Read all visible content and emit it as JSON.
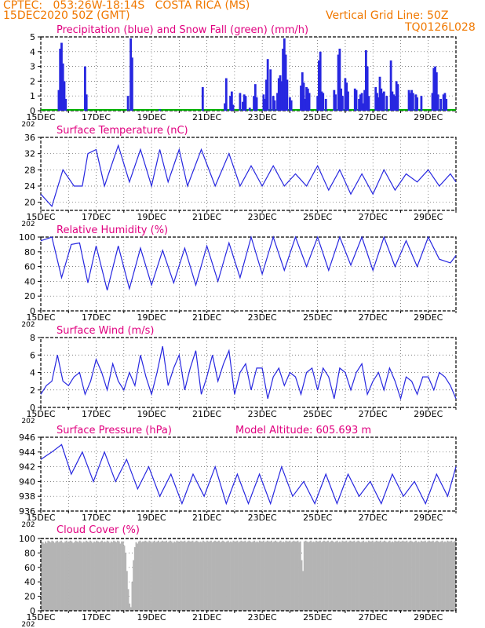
{
  "header": {
    "line1": "CPTEC:   053:26W-18:14S   COSTA RICA (MS)",
    "line2": "15DEC2020 50Z (GMT)",
    "grid_note": "Vertical Grid Line: 50Z",
    "code": "TQ0126L028",
    "header_color": "#f07800",
    "title_color": "#e0007f"
  },
  "x_axis": {
    "tick_labels": [
      "15DEC",
      "17DEC",
      "19DEC",
      "21DEC",
      "23DEC",
      "25DEC",
      "27DEC",
      "29DEC"
    ],
    "year_fragment": "202",
    "xlim": [
      0,
      15
    ]
  },
  "chart_data": [
    {
      "type": "bar",
      "title": "Precipitation (blue) and Snow Fall (green) (mm/h)",
      "ylim": [
        0,
        5
      ],
      "yticks": [
        0,
        1,
        2,
        3,
        4,
        5
      ],
      "grid": true,
      "colors": {
        "precip": "#2727e0",
        "snow": "#00b000"
      },
      "series": [
        {
          "name": "Precipitation",
          "points": [
            [
              0.65,
              1.4
            ],
            [
              0.7,
              4.2
            ],
            [
              0.75,
              4.6
            ],
            [
              0.8,
              3.2
            ],
            [
              0.85,
              2.0
            ],
            [
              0.9,
              0.8
            ],
            [
              1.6,
              3.0
            ],
            [
              1.65,
              1.1
            ],
            [
              3.15,
              1.0
            ],
            [
              3.25,
              4.9
            ],
            [
              3.3,
              3.6
            ],
            [
              4.3,
              0.1
            ],
            [
              5.85,
              1.6
            ],
            [
              6.65,
              0.5
            ],
            [
              6.7,
              2.2
            ],
            [
              6.85,
              1.0
            ],
            [
              6.9,
              1.3
            ],
            [
              6.95,
              0.4
            ],
            [
              7.2,
              1.2
            ],
            [
              7.3,
              0.6
            ],
            [
              7.35,
              1.1
            ],
            [
              7.4,
              1.0
            ],
            [
              7.55,
              0.2
            ],
            [
              7.7,
              1.0
            ],
            [
              7.75,
              1.8
            ],
            [
              7.8,
              0.9
            ],
            [
              8.05,
              1.1
            ],
            [
              8.1,
              0.8
            ],
            [
              8.15,
              2.1
            ],
            [
              8.2,
              3.5
            ],
            [
              8.3,
              2.8
            ],
            [
              8.4,
              1.0
            ],
            [
              8.45,
              0.7
            ],
            [
              8.55,
              1.2
            ],
            [
              8.6,
              2.2
            ],
            [
              8.65,
              2.4
            ],
            [
              8.7,
              2.0
            ],
            [
              8.75,
              4.2
            ],
            [
              8.8,
              4.9
            ],
            [
              8.85,
              3.8
            ],
            [
              8.9,
              2.1
            ],
            [
              9.0,
              0.9
            ],
            [
              9.05,
              0.7
            ],
            [
              9.4,
              1.7
            ],
            [
              9.45,
              2.6
            ],
            [
              9.5,
              1.9
            ],
            [
              9.55,
              0.8
            ],
            [
              9.6,
              1.6
            ],
            [
              9.65,
              1.5
            ],
            [
              9.7,
              1.2
            ],
            [
              10.0,
              1.0
            ],
            [
              10.05,
              3.4
            ],
            [
              10.1,
              4.0
            ],
            [
              10.15,
              1.3
            ],
            [
              10.2,
              1.2
            ],
            [
              10.3,
              0.8
            ],
            [
              10.6,
              1.4
            ],
            [
              10.65,
              1.1
            ],
            [
              10.75,
              3.8
            ],
            [
              10.8,
              4.2
            ],
            [
              10.85,
              1.5
            ],
            [
              10.9,
              1.0
            ],
            [
              11.0,
              2.2
            ],
            [
              11.05,
              1.9
            ],
            [
              11.1,
              1.3
            ],
            [
              11.35,
              1.5
            ],
            [
              11.4,
              1.4
            ],
            [
              11.5,
              0.8
            ],
            [
              11.55,
              1.1
            ],
            [
              11.6,
              1.2
            ],
            [
              11.65,
              0.5
            ],
            [
              11.7,
              1.4
            ],
            [
              11.75,
              4.1
            ],
            [
              11.8,
              3.0
            ],
            [
              11.85,
              1.0
            ],
            [
              12.1,
              1.6
            ],
            [
              12.15,
              1.2
            ],
            [
              12.2,
              0.9
            ],
            [
              12.25,
              2.3
            ],
            [
              12.3,
              1.5
            ],
            [
              12.35,
              1.2
            ],
            [
              12.4,
              1.3
            ],
            [
              12.5,
              1.0
            ],
            [
              12.65,
              3.4
            ],
            [
              12.7,
              1.3
            ],
            [
              12.75,
              1.1
            ],
            [
              12.8,
              1.0
            ],
            [
              12.85,
              2.0
            ],
            [
              12.9,
              1.8
            ],
            [
              13.3,
              1.4
            ],
            [
              13.35,
              1.2
            ],
            [
              13.4,
              1.4
            ],
            [
              13.45,
              1.2
            ],
            [
              13.55,
              1.1
            ],
            [
              13.6,
              0.9
            ],
            [
              13.75,
              1.0
            ],
            [
              14.15,
              1.2
            ],
            [
              14.2,
              2.9
            ],
            [
              14.25,
              3.0
            ],
            [
              14.3,
              2.6
            ],
            [
              14.35,
              1.1
            ],
            [
              14.45,
              0.8
            ],
            [
              14.55,
              1.1
            ],
            [
              14.6,
              1.2
            ],
            [
              14.65,
              0.8
            ]
          ]
        },
        {
          "name": "Snow Fall",
          "values": [
            0
          ]
        }
      ]
    },
    {
      "type": "line",
      "title": "Surface Temperature (nC)",
      "ylim": [
        18,
        36
      ],
      "yticks": [
        20,
        24,
        28,
        32,
        36
      ],
      "grid": true,
      "color": "#2727e0",
      "x": [
        0,
        0.4,
        0.8,
        1.2,
        1.5,
        1.7,
        2.0,
        2.3,
        2.8,
        3.2,
        3.6,
        4.0,
        4.3,
        4.6,
        5.0,
        5.3,
        5.8,
        6.3,
        6.8,
        7.2,
        7.6,
        8.0,
        8.4,
        8.8,
        9.2,
        9.6,
        10.0,
        10.4,
        10.8,
        11.2,
        11.6,
        12.0,
        12.4,
        12.8,
        13.2,
        13.6,
        14.0,
        14.4,
        14.8,
        15.0
      ],
      "y": [
        22,
        19,
        28,
        24,
        24,
        32,
        33,
        24,
        34,
        25,
        33,
        24,
        33,
        25,
        33,
        24,
        33,
        24,
        32,
        24,
        29,
        24,
        29,
        24,
        27,
        24,
        29,
        23,
        28,
        22,
        27,
        22,
        28,
        23,
        27,
        25,
        28,
        24,
        27,
        25
      ]
    },
    {
      "type": "line",
      "title": "Relative Humidity (%)",
      "ylim": [
        0,
        100
      ],
      "yticks": [
        0,
        20,
        40,
        60,
        80,
        100
      ],
      "grid": true,
      "color": "#2727e0",
      "x": [
        0,
        0.4,
        0.75,
        1.1,
        1.4,
        1.7,
        2.0,
        2.4,
        2.8,
        3.2,
        3.6,
        4.0,
        4.4,
        4.8,
        5.2,
        5.6,
        6.0,
        6.4,
        6.8,
        7.2,
        7.6,
        8.0,
        8.4,
        8.8,
        9.2,
        9.6,
        10.0,
        10.4,
        10.8,
        11.2,
        11.6,
        12.0,
        12.4,
        12.8,
        13.2,
        13.6,
        14.0,
        14.4,
        14.8,
        15.0
      ],
      "y": [
        95,
        100,
        45,
        90,
        92,
        38,
        88,
        28,
        88,
        30,
        85,
        35,
        82,
        38,
        85,
        35,
        88,
        40,
        92,
        45,
        100,
        50,
        100,
        55,
        100,
        60,
        100,
        55,
        100,
        62,
        100,
        55,
        100,
        60,
        95,
        60,
        100,
        70,
        65,
        75
      ]
    },
    {
      "type": "line",
      "title": "Surface Wind (m/s)",
      "ylim": [
        0,
        8
      ],
      "yticks": [
        0,
        2,
        4,
        6,
        8
      ],
      "grid": true,
      "color": "#2727e0",
      "x": [
        0,
        0.2,
        0.4,
        0.6,
        0.8,
        1.0,
        1.2,
        1.4,
        1.6,
        1.8,
        2.0,
        2.2,
        2.4,
        2.6,
        2.8,
        3.0,
        3.2,
        3.4,
        3.6,
        3.8,
        4.0,
        4.2,
        4.4,
        4.6,
        4.8,
        5.0,
        5.2,
        5.4,
        5.6,
        5.8,
        6.0,
        6.2,
        6.4,
        6.6,
        6.8,
        7.0,
        7.2,
        7.4,
        7.6,
        7.8,
        8.0,
        8.2,
        8.4,
        8.6,
        8.8,
        9.0,
        9.2,
        9.4,
        9.6,
        9.8,
        10.0,
        10.2,
        10.4,
        10.6,
        10.8,
        11.0,
        11.2,
        11.4,
        11.6,
        11.8,
        12.0,
        12.2,
        12.4,
        12.6,
        12.8,
        13.0,
        13.2,
        13.4,
        13.6,
        13.8,
        14.0,
        14.2,
        14.4,
        14.6,
        14.8,
        15.0
      ],
      "y": [
        1.5,
        2.5,
        3.0,
        6.0,
        3.0,
        2.5,
        3.5,
        4.0,
        1.5,
        3.0,
        5.5,
        4.0,
        2.0,
        5.0,
        3.0,
        2.0,
        4.0,
        2.5,
        6.0,
        3.5,
        1.5,
        4.0,
        7.0,
        2.5,
        4.5,
        6.0,
        2.0,
        4.5,
        6.5,
        1.5,
        3.5,
        6.0,
        3.0,
        5.0,
        6.5,
        1.5,
        4.0,
        5.0,
        2.0,
        4.5,
        4.5,
        1.0,
        3.5,
        4.5,
        2.5,
        4.0,
        3.5,
        1.5,
        4.0,
        4.5,
        2.0,
        4.5,
        3.5,
        1.0,
        4.5,
        4.0,
        2.0,
        4.0,
        5.0,
        1.5,
        3.0,
        4.0,
        2.0,
        4.5,
        3.0,
        1.0,
        3.5,
        3.0,
        1.5,
        3.5,
        3.5,
        2.0,
        4.0,
        3.5,
        2.5,
        1.0
      ]
    },
    {
      "type": "line",
      "title": "Surface Pressure (hPa)",
      "annotation": "Model Altitude: 605.693 m",
      "ylim": [
        936,
        946
      ],
      "yticks": [
        936,
        938,
        940,
        942,
        944,
        946
      ],
      "grid": true,
      "color": "#2727e0",
      "x": [
        0,
        0.4,
        0.75,
        1.1,
        1.5,
        1.9,
        2.3,
        2.7,
        3.1,
        3.5,
        3.9,
        4.3,
        4.7,
        5.1,
        5.5,
        5.9,
        6.3,
        6.7,
        7.1,
        7.5,
        7.9,
        8.3,
        8.7,
        9.1,
        9.5,
        9.9,
        10.3,
        10.7,
        11.1,
        11.5,
        11.9,
        12.3,
        12.7,
        13.1,
        13.5,
        13.9,
        14.3,
        14.7,
        15.0
      ],
      "y": [
        943,
        944,
        945,
        941,
        944,
        940,
        944,
        940,
        943,
        939,
        942,
        938,
        941,
        937,
        941,
        938,
        942,
        937,
        941,
        937,
        941,
        937,
        942,
        938,
        940,
        937,
        941,
        937,
        941,
        938,
        940,
        937,
        941,
        938,
        940,
        937,
        941,
        938,
        942
      ]
    },
    {
      "type": "bar",
      "title": "Cloud Cover (%)",
      "ylim": [
        0,
        100
      ],
      "yticks": [
        0,
        20,
        40,
        60,
        80,
        100
      ],
      "grid": true,
      "color": "#b4b4b4",
      "values": [
        95,
        95,
        93,
        96,
        94,
        97,
        96,
        95,
        97,
        96,
        94,
        96,
        97,
        95,
        96,
        97,
        95,
        94,
        96,
        97,
        95,
        96,
        97,
        96,
        94,
        95,
        97,
        96,
        95,
        97,
        96,
        94,
        96,
        95,
        97,
        96,
        95,
        97,
        96,
        94,
        96,
        95,
        97,
        96,
        95,
        96,
        97,
        95,
        96,
        95,
        97,
        96,
        94,
        96,
        95,
        97,
        96,
        95,
        97,
        96,
        93,
        96,
        96,
        90,
        80,
        55,
        30,
        10,
        5,
        40,
        70,
        88,
        95,
        93,
        96,
        97,
        95,
        96,
        96,
        97,
        96,
        95,
        97,
        96,
        94,
        96,
        97,
        95,
        96,
        97,
        95,
        96,
        97,
        96,
        96,
        97,
        95,
        96,
        97,
        96,
        94,
        96,
        95,
        97,
        96,
        95,
        97,
        96,
        96,
        97,
        95,
        96,
        97,
        96,
        96,
        97,
        95,
        96,
        97,
        96,
        95,
        96,
        95,
        97,
        96,
        95,
        97,
        96,
        96,
        97,
        95,
        96,
        97,
        96,
        96,
        97,
        95,
        96,
        97,
        96,
        95,
        96,
        97,
        95,
        96,
        95,
        97,
        96,
        96,
        97,
        95,
        96,
        97,
        96,
        96,
        97,
        95,
        96,
        97,
        96,
        95,
        96,
        97,
        95,
        96,
        95,
        97,
        96,
        96,
        97,
        95,
        96,
        97,
        96,
        96,
        97,
        95,
        96,
        97,
        96,
        95,
        96,
        97,
        95,
        96,
        95,
        97,
        96,
        96,
        97,
        95,
        96,
        97,
        96,
        96,
        97,
        95,
        96,
        70,
        55,
        96,
        97,
        96,
        95,
        96,
        97,
        95,
        96,
        95,
        97,
        96,
        96,
        97,
        95,
        96,
        97,
        96,
        96,
        97,
        95,
        96,
        97,
        96,
        95,
        96,
        97,
        95,
        96,
        95,
        97,
        96,
        96,
        97,
        95,
        96,
        97,
        96,
        96,
        97,
        95,
        96,
        97,
        96,
        95,
        96,
        97,
        95,
        96,
        95,
        97,
        96,
        96,
        97,
        95,
        96,
        97,
        96,
        96,
        97,
        95,
        96,
        97,
        96,
        95,
        96,
        97,
        95,
        96,
        95,
        97,
        96,
        96,
        97,
        95,
        96,
        97,
        96,
        96,
        97,
        95,
        96,
        97,
        96,
        95,
        96,
        97,
        95,
        96,
        95,
        97,
        96,
        96,
        97,
        95,
        96,
        97,
        96,
        96,
        97,
        95,
        96,
        97,
        96,
        95,
        96,
        97,
        95,
        96,
        95,
        97,
        96,
        96,
        97,
        95,
        96,
        97
      ]
    }
  ]
}
